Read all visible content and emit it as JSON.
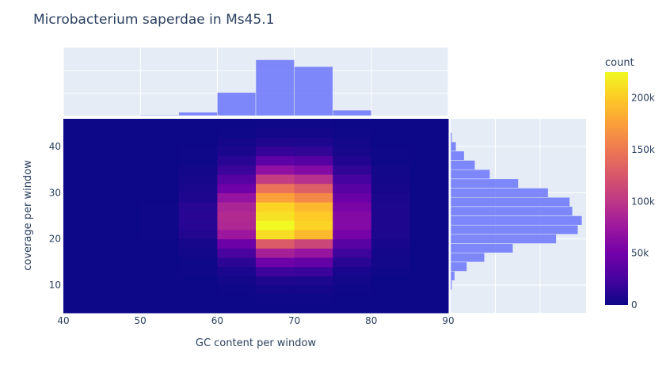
{
  "chart_data": {
    "type": "heatmap",
    "title": "Microbacterium saperdae in Ms45.1",
    "xlabel": "GC content per window",
    "ylabel": "coverage per window",
    "x_range": [
      40,
      90
    ],
    "y_range": [
      4,
      46
    ],
    "x_bin_edges": [
      40,
      45,
      50,
      55,
      60,
      65,
      70,
      75,
      80,
      85,
      90
    ],
    "y_bin_size": 2,
    "x_ticks": [
      "40",
      "50",
      "60",
      "70",
      "80",
      "90"
    ],
    "y_ticks": [
      "10",
      "20",
      "30",
      "40"
    ],
    "grid": true,
    "colorscale": [
      "#0d0887",
      "#46039f",
      "#7201a8",
      "#9c179e",
      "#bd3786",
      "#d8576b",
      "#ed7953",
      "#fb9f3a",
      "#fdca26",
      "#f0f921"
    ],
    "colorbar": {
      "title": "count",
      "range": [
        0,
        225000
      ],
      "ticks": [
        0,
        50000,
        100000,
        150000,
        200000
      ],
      "tick_labels": [
        "0",
        "50k",
        "100k",
        "150k",
        "200k"
      ]
    },
    "heatmap": {
      "y_bins": [
        {
          "y0": 4,
          "values": [
            0,
            0,
            0,
            0,
            0,
            0,
            0,
            0,
            0,
            0
          ]
        },
        {
          "y0": 6,
          "values": [
            0,
            0,
            0,
            0,
            0,
            1000,
            1000,
            0,
            0,
            0
          ]
        },
        {
          "y0": 8,
          "values": [
            0,
            0,
            0,
            0,
            1000,
            3000,
            3000,
            1000,
            0,
            0
          ]
        },
        {
          "y0": 10,
          "values": [
            0,
            0,
            0,
            0,
            2000,
            8000,
            7000,
            2000,
            0,
            0
          ]
        },
        {
          "y0": 12,
          "values": [
            0,
            0,
            0,
            1000,
            6000,
            22000,
            20000,
            5000,
            1000,
            0
          ]
        },
        {
          "y0": 14,
          "values": [
            0,
            0,
            0,
            1000,
            14000,
            48000,
            42000,
            12000,
            2000,
            0
          ]
        },
        {
          "y0": 16,
          "values": [
            0,
            0,
            0,
            2000,
            28000,
            82000,
            72000,
            22000,
            3000,
            0
          ]
        },
        {
          "y0": 18,
          "values": [
            0,
            0,
            0,
            4000,
            46000,
            128000,
            112000,
            36000,
            5000,
            0
          ]
        },
        {
          "y0": 20,
          "values": [
            0,
            0,
            1000,
            9000,
            75000,
            210000,
            190000,
            52000,
            7000,
            0
          ]
        },
        {
          "y0": 22,
          "values": [
            0,
            0,
            1000,
            11000,
            88000,
            225000,
            205000,
            60000,
            8000,
            0
          ]
        },
        {
          "y0": 24,
          "values": [
            0,
            0,
            1000,
            12000,
            90000,
            212000,
            200000,
            60000,
            8000,
            0
          ]
        },
        {
          "y0": 26,
          "values": [
            0,
            0,
            1000,
            11000,
            85000,
            205000,
            190000,
            55000,
            7000,
            0
          ]
        },
        {
          "y0": 28,
          "values": [
            0,
            0,
            0,
            8000,
            70000,
            175000,
            160000,
            45000,
            6000,
            0
          ]
        },
        {
          "y0": 30,
          "values": [
            0,
            0,
            0,
            6000,
            48000,
            145000,
            130000,
            35000,
            4000,
            0
          ]
        },
        {
          "y0": 32,
          "values": [
            0,
            0,
            0,
            4000,
            34000,
            105000,
            95000,
            25000,
            3000,
            0
          ]
        },
        {
          "y0": 34,
          "values": [
            0,
            0,
            0,
            2000,
            20000,
            68000,
            60000,
            16000,
            2000,
            0
          ]
        },
        {
          "y0": 36,
          "values": [
            0,
            0,
            0,
            1000,
            12000,
            38000,
            34000,
            9000,
            1000,
            0
          ]
        },
        {
          "y0": 38,
          "values": [
            0,
            0,
            0,
            1000,
            6000,
            18000,
            16000,
            4000,
            1000,
            0
          ]
        },
        {
          "y0": 40,
          "values": [
            0,
            0,
            0,
            0,
            3000,
            8000,
            7000,
            2000,
            0,
            0
          ]
        },
        {
          "y0": 42,
          "values": [
            0,
            0,
            0,
            0,
            1000,
            3000,
            3000,
            1000,
            0,
            0
          ]
        },
        {
          "y0": 44,
          "values": [
            0,
            0,
            0,
            0,
            0,
            1000,
            1000,
            0,
            0,
            0
          ]
        }
      ]
    },
    "x_marginal": {
      "type": "bar",
      "bin_edges": [
        40,
        45,
        50,
        55,
        60,
        65,
        70,
        75,
        80,
        85,
        90
      ],
      "values": [
        0,
        0,
        1,
        5,
        34,
        82,
        72,
        8,
        0,
        0
      ],
      "relative_unit": "percent of max-axis"
    },
    "y_marginal": {
      "type": "bar",
      "orientation": "horizontal",
      "bins": [
        {
          "y0": 9,
          "y1": 11,
          "value": 1
        },
        {
          "y0": 11,
          "y1": 13,
          "value": 3
        },
        {
          "y0": 13,
          "y1": 15,
          "value": 12
        },
        {
          "y0": 15,
          "y1": 17,
          "value": 25
        },
        {
          "y0": 17,
          "y1": 19,
          "value": 46
        },
        {
          "y0": 19,
          "y1": 21,
          "value": 78
        },
        {
          "y0": 21,
          "y1": 23,
          "value": 94
        },
        {
          "y0": 23,
          "y1": 25,
          "value": 97
        },
        {
          "y0": 25,
          "y1": 27,
          "value": 90
        },
        {
          "y0": 27,
          "y1": 29,
          "value": 88
        },
        {
          "y0": 29,
          "y1": 31,
          "value": 72
        },
        {
          "y0": 31,
          "y1": 33,
          "value": 50
        },
        {
          "y0": 33,
          "y1": 35,
          "value": 29
        },
        {
          "y0": 35,
          "y1": 37,
          "value": 18
        },
        {
          "y0": 37,
          "y1": 39,
          "value": 10
        },
        {
          "y0": 39,
          "y1": 41,
          "value": 4
        },
        {
          "y0": 41,
          "y1": 43,
          "value": 1
        }
      ]
    },
    "colors": {
      "plot_bg": "#e5ecf6",
      "grid": "#ffffff",
      "bar": "#636efa",
      "text": "#2a3f5f",
      "tick_text": "#2a3f5f"
    }
  }
}
